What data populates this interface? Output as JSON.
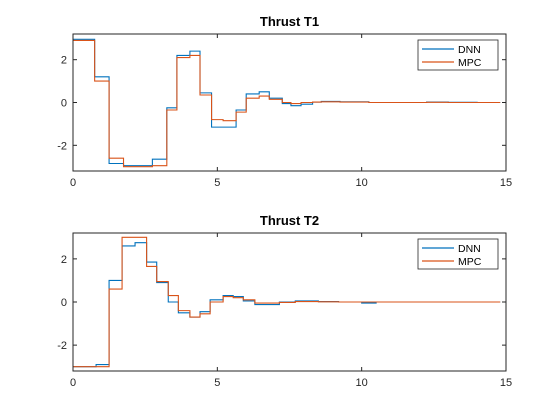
{
  "figure": {
    "background": "#ffffff",
    "axes_color": "#262626",
    "series_colors": {
      "DNN": "#0072BD",
      "MPC": "#D95319"
    }
  },
  "chart_data": [
    {
      "type": "line",
      "step": true,
      "title": "Thrust T1",
      "xlabel": "",
      "ylabel": "",
      "xlim": [
        0,
        15
      ],
      "ylim": [
        -3.2,
        3.2
      ],
      "xticks": [
        0,
        5,
        10,
        15
      ],
      "yticks": [
        -2,
        0,
        2
      ],
      "grid": false,
      "legend": {
        "position": "top-right",
        "entries": [
          "DNN",
          "MPC"
        ]
      },
      "x": [
        0,
        0.75,
        1.25,
        1.75,
        2.75,
        3.25,
        3.6,
        4.05,
        4.4,
        4.8,
        5.2,
        5.65,
        6.0,
        6.45,
        6.8,
        7.25,
        7.55,
        7.9,
        8.3,
        8.6,
        9.25,
        10.25,
        12.25,
        13.0,
        14.0,
        14.8
      ],
      "series": [
        {
          "name": "DNN",
          "values": [
            2.95,
            1.2,
            -2.85,
            -2.95,
            -2.65,
            -0.25,
            2.2,
            2.4,
            0.45,
            -1.15,
            -1.15,
            -0.35,
            0.4,
            0.5,
            0.2,
            -0.05,
            -0.15,
            -0.08,
            0.02,
            0.05,
            0.03,
            0.0,
            0.02,
            0.01,
            0.0,
            0.0
          ]
        },
        {
          "name": "MPC",
          "values": [
            2.9,
            1.0,
            -2.6,
            -3.0,
            -2.95,
            -0.35,
            2.1,
            2.2,
            0.35,
            -0.8,
            -0.85,
            -0.45,
            0.2,
            0.3,
            0.15,
            0.0,
            -0.05,
            0.0,
            0.02,
            0.03,
            0.02,
            0.0,
            0.01,
            0.0,
            0.0,
            0.0
          ]
        }
      ]
    },
    {
      "type": "line",
      "step": true,
      "title": "Thrust T2",
      "xlabel": "",
      "ylabel": "",
      "xlim": [
        0,
        15
      ],
      "ylim": [
        -3.2,
        3.2
      ],
      "xticks": [
        0,
        5,
        10,
        15
      ],
      "yticks": [
        -2,
        0,
        2
      ],
      "grid": false,
      "legend": {
        "position": "top-right",
        "entries": [
          "DNN",
          "MPC"
        ]
      },
      "x": [
        0,
        0.8,
        1.25,
        1.7,
        2.15,
        2.55,
        2.9,
        3.3,
        3.65,
        4.05,
        4.4,
        4.75,
        5.2,
        5.55,
        5.9,
        6.3,
        7.15,
        7.7,
        8.5,
        9.2,
        10.0,
        10.5,
        14.8
      ],
      "series": [
        {
          "name": "DNN",
          "values": [
            -3.0,
            -2.9,
            1.0,
            2.6,
            2.75,
            1.85,
            0.9,
            0.0,
            -0.5,
            -0.7,
            -0.45,
            0.1,
            0.3,
            0.25,
            0.05,
            -0.12,
            0.0,
            0.05,
            0.02,
            0.0,
            -0.05,
            0.0,
            0.0
          ]
        },
        {
          "name": "MPC",
          "values": [
            -3.0,
            -3.0,
            0.6,
            3.0,
            3.0,
            1.65,
            0.95,
            0.3,
            -0.4,
            -0.7,
            -0.55,
            0.0,
            0.25,
            0.2,
            0.1,
            -0.05,
            -0.02,
            0.02,
            0.01,
            0.0,
            0.0,
            0.0,
            0.0
          ]
        }
      ]
    }
  ]
}
